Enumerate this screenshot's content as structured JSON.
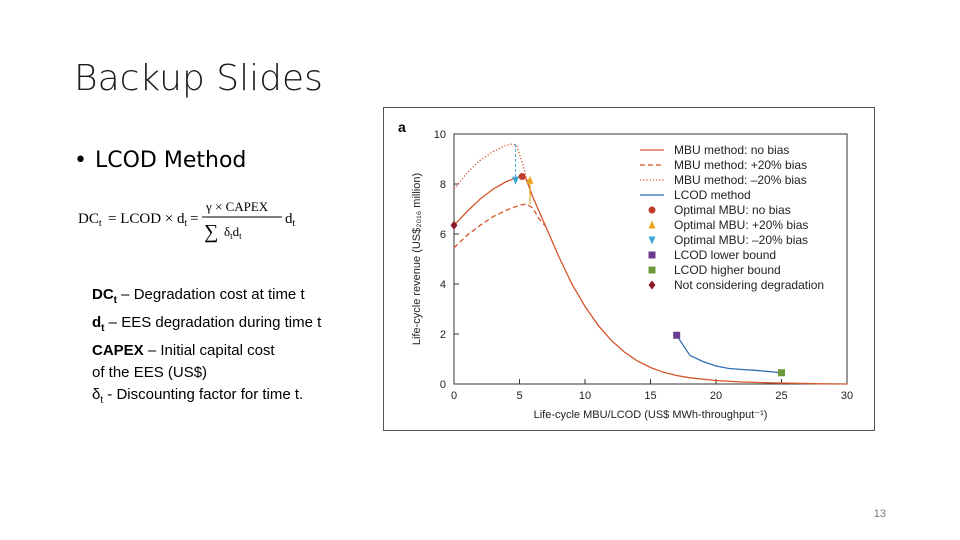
{
  "slide": {
    "title": "Backup Slides",
    "bullet": "LCOD Method",
    "page_number": "13"
  },
  "formula": {
    "lhs": "DC",
    "lhs_sub": "t",
    "eq1": "= LCOD × d",
    "eq1_sub": "t",
    "eq2": "=",
    "numerator": "γ × CAPEX",
    "denominator": "δ",
    "den_sub": "t",
    "den_tail": "d",
    "rhs": "d",
    "rhs_sub": "t"
  },
  "definitions": [
    {
      "symbol": "DC",
      "sub": "t",
      "text": " – Degradation cost at time t"
    },
    {
      "symbol": "d",
      "sub": "t",
      "text": " – EES degradation during time t"
    },
    {
      "symbol": "CAPEX",
      "sub": "",
      "text": " – Initial capital cost"
    },
    {
      "symbol": "",
      "sub": "",
      "text": "of the EES (US$)"
    },
    {
      "symbol": "δ",
      "sub": "t",
      "text": " - Discounting factor for time t."
    }
  ],
  "figure": {
    "panel_label": "a"
  },
  "chart_data": {
    "type": "line",
    "xlabel": "Life-cycle MBU/LCOD (US$ MWh-throughput⁻¹)",
    "ylabel": "Life-cycle revenue (US$₂₀₁₆ million)",
    "xlim": [
      0,
      30
    ],
    "ylim": [
      0,
      10
    ],
    "xticks": [
      0,
      5,
      10,
      15,
      20,
      25,
      30
    ],
    "yticks": [
      0,
      2,
      4,
      6,
      8,
      10
    ],
    "grid": false,
    "legend_position": "top-right",
    "colors": {
      "mbu": "#d4552a",
      "lcod": "#2f6fb0",
      "optimal_no_bias": "#c23a2e",
      "optimal_plus20": "#e8a41d",
      "optimal_minus20": "#3aa6d8",
      "lcod_lower": "#6b3a8c",
      "lcod_higher": "#6c9a3b",
      "not_considering": "#8b1a2a"
    },
    "series": [
      {
        "name": "MBU method: no bias",
        "style": "solid",
        "x": [
          0,
          1,
          2,
          3,
          4,
          5,
          5.5,
          6,
          7,
          8,
          9,
          10,
          11,
          12,
          13,
          14,
          15,
          16,
          17,
          18,
          20,
          22,
          24,
          26,
          28,
          30
        ],
        "y": [
          6.35,
          6.9,
          7.4,
          7.8,
          8.1,
          8.3,
          8.2,
          7.5,
          6.3,
          5.1,
          4.0,
          3.1,
          2.35,
          1.75,
          1.28,
          0.92,
          0.66,
          0.47,
          0.34,
          0.25,
          0.14,
          0.08,
          0.05,
          0.03,
          0.01,
          0.0
        ]
      },
      {
        "name": "MBU method: +20% bias",
        "style": "dashed",
        "x": [
          0,
          1,
          2,
          3,
          4,
          5,
          5.5,
          6,
          6.5,
          7
        ],
        "y": [
          5.45,
          5.95,
          6.35,
          6.7,
          6.95,
          7.15,
          7.2,
          7.05,
          6.6,
          6.3
        ]
      },
      {
        "name": "MBU method: –20% bias",
        "style": "dotted",
        "x": [
          0,
          1,
          2,
          3,
          4,
          4.5,
          4.8,
          5,
          5.3,
          5.6,
          6
        ],
        "y": [
          7.8,
          8.45,
          8.95,
          9.3,
          9.55,
          9.6,
          9.5,
          9.2,
          8.7,
          8.1,
          7.5
        ]
      },
      {
        "name": "LCOD method",
        "style": "solid-blue",
        "x": [
          17,
          18,
          19,
          20,
          21,
          22,
          23,
          24,
          25
        ],
        "y": [
          1.95,
          1.15,
          0.9,
          0.72,
          0.62,
          0.58,
          0.55,
          0.5,
          0.45
        ]
      }
    ],
    "markers": [
      {
        "name": "Optimal MBU: no bias",
        "shape": "circle",
        "x": 5.2,
        "y": 8.3
      },
      {
        "name": "Optimal MBU: +20% bias",
        "shape": "triangle-up",
        "x": 5.8,
        "y": 8.15
      },
      {
        "name": "Optimal MBU: –20% bias",
        "shape": "triangle-down",
        "x": 4.7,
        "y": 8.15
      },
      {
        "name": "LCOD lower bound",
        "shape": "square",
        "x": 17,
        "y": 1.95
      },
      {
        "name": "LCOD higher bound",
        "shape": "square",
        "x": 25,
        "y": 0.45
      },
      {
        "name": "Not considering degradation",
        "shape": "diamond",
        "x": 0,
        "y": 6.35
      }
    ],
    "legend": [
      {
        "label": "MBU method: no bias",
        "kind": "line",
        "style": "solid",
        "color": "#d4552a"
      },
      {
        "label": "MBU method: +20% bias",
        "kind": "line",
        "style": "dashed",
        "color": "#d4552a"
      },
      {
        "label": "MBU method: –20% bias",
        "kind": "line",
        "style": "dotted",
        "color": "#d4552a"
      },
      {
        "label": "LCOD method",
        "kind": "line",
        "style": "solid",
        "color": "#2f6fb0"
      },
      {
        "label": "Optimal MBU: no bias",
        "kind": "circle",
        "color": "#c23a2e"
      },
      {
        "label": "Optimal MBU: +20% bias",
        "kind": "triangle-up",
        "color": "#e8a41d"
      },
      {
        "label": "Optimal MBU: –20% bias",
        "kind": "triangle-down",
        "color": "#3aa6d8"
      },
      {
        "label": "LCOD lower bound",
        "kind": "square",
        "color": "#6b3a8c"
      },
      {
        "label": "LCOD higher bound",
        "kind": "square",
        "color": "#6c9a3b"
      },
      {
        "label": "Not considering degradation",
        "kind": "diamond",
        "color": "#8b1a2a"
      }
    ]
  }
}
